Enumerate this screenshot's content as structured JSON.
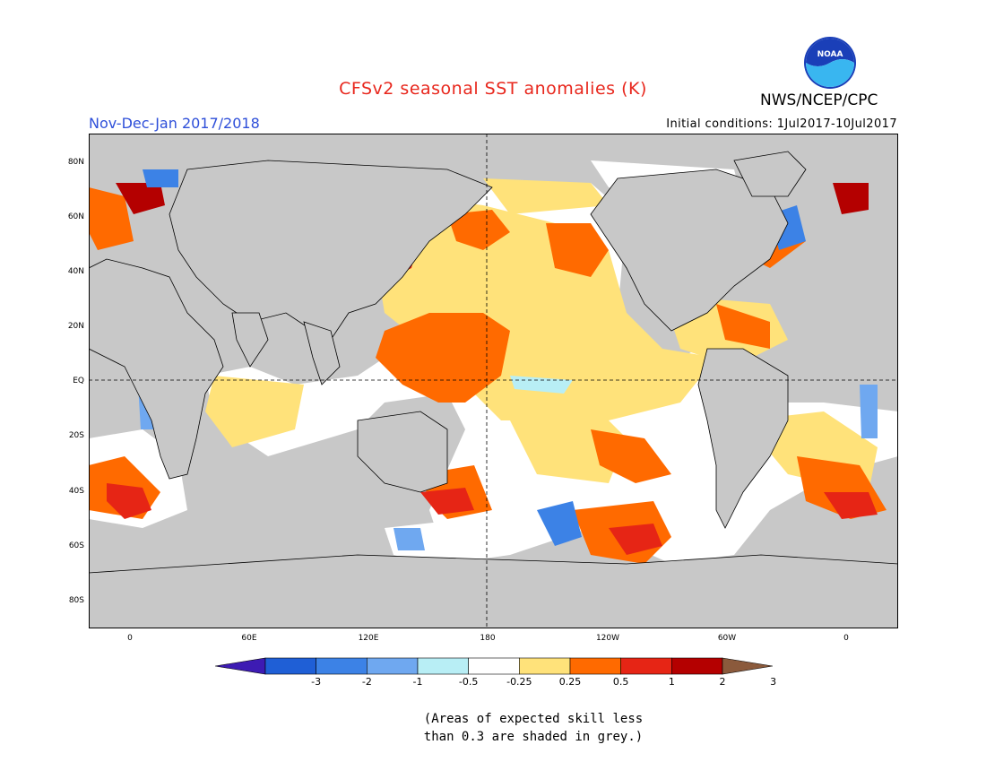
{
  "header": {
    "title": "CFSv2 seasonal SST anomalies (K)",
    "agency": "NWS/NCEP/CPC",
    "logo_text": "NOAA",
    "season": "Nov-Dec-Jan 2017/2018",
    "initial_conditions": "Initial conditions: 1Jul2017-10Jul2017"
  },
  "map": {
    "projection": "equirectangular",
    "lon_range": [
      -20,
      380
    ],
    "lat_range": [
      -90,
      90
    ],
    "lat_labels": [
      "80N",
      "60N",
      "40N",
      "20N",
      "EQ",
      "20S",
      "40S",
      "60S",
      "80S"
    ],
    "lon_labels": [
      "0",
      "60E",
      "120E",
      "180",
      "120W",
      "60W",
      "0"
    ],
    "grey_meaning": "low skill",
    "land_color": "#c8c8c8"
  },
  "colorbar": {
    "labels": [
      "-3",
      "-2",
      "-1",
      "-0.5",
      "-0.25",
      "0.25",
      "0.5",
      "1",
      "2",
      "3"
    ],
    "colors": [
      "#3d1bb3",
      "#1f5fd6",
      "#3c82e6",
      "#6fa8f0",
      "#b8eef5",
      "#ffffff",
      "#ffe27a",
      "#ff6a00",
      "#e62515",
      "#b40000",
      "#8b5a3c"
    ]
  },
  "note": {
    "line1": "(Areas of expected skill less",
    "line2": "than 0.3 are shaded in grey.)"
  }
}
